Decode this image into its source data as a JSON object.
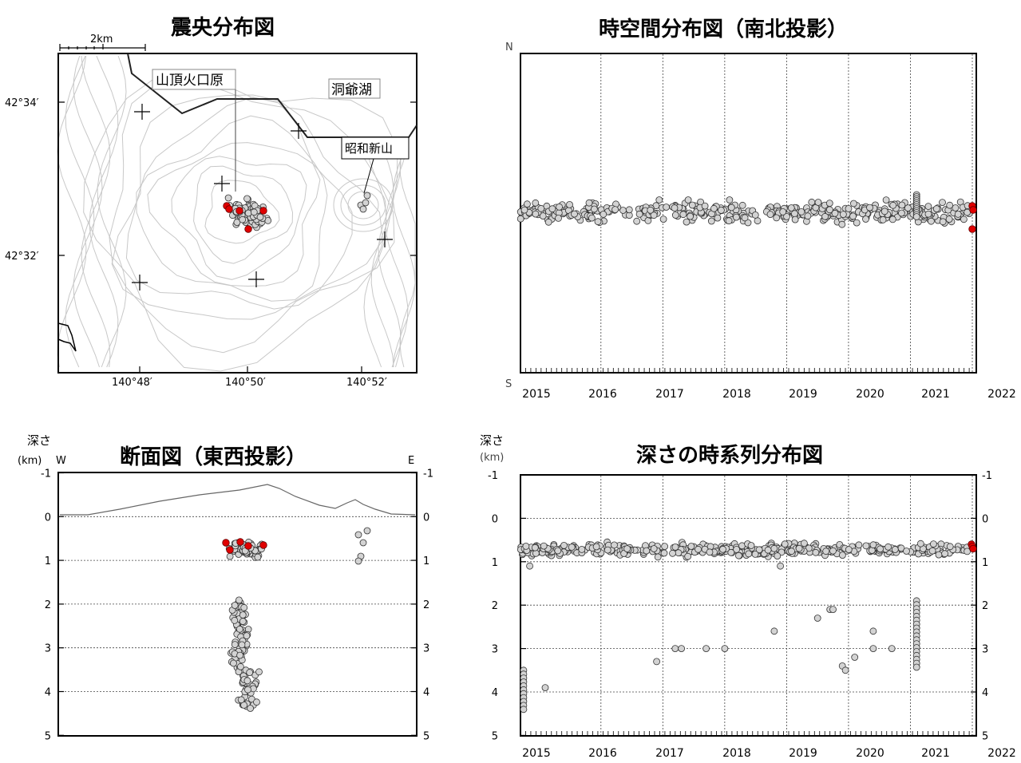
{
  "titles": {
    "epicenter": "震央分布図",
    "spacetime": "時空間分布図（南北投影）",
    "cross": "断面図（東西投影）",
    "depthtime": "深さの時系列分布図"
  },
  "labels": {
    "depth": "深さ",
    "km": "(km)",
    "west": "W",
    "east": "E",
    "north": "N",
    "south": "S",
    "scale": "2km",
    "summit": "山頂火口原",
    "lake": "洞爺湖",
    "showa": "昭和新山"
  },
  "colors": {
    "event": "#d3d3d3",
    "recent": "#e00000",
    "frame": "#000000",
    "contour": "#c8c8c8",
    "grid": "#444444"
  },
  "chart_data": [
    {
      "type": "scatter",
      "title": "震央分布図",
      "xlabel": "",
      "ylabel": "",
      "xticks": [
        "140°48′",
        "140°50′",
        "140°52′"
      ],
      "yticks": [
        "42°34′",
        "42°32′"
      ],
      "annotations": [
        "2km",
        "山頂火口原",
        "洞爺湖",
        "昭和新山"
      ],
      "series": [
        {
          "cluster": "summit",
          "lon_range": [
            140.818,
            140.836
          ],
          "lat_range": [
            42.538,
            42.547
          ],
          "n": 90
        },
        {
          "cluster": "showa-shinzan",
          "points": [
            [
              140.867,
              42.543
            ],
            [
              140.868,
              42.544
            ],
            [
              140.869,
              42.542
            ]
          ]
        }
      ],
      "recent": [
        [
          140.82,
          42.542
        ],
        [
          140.826,
          42.542
        ],
        [
          140.834,
          42.542
        ],
        [
          140.829,
          42.538
        ],
        [
          140.821,
          42.543
        ]
      ]
    },
    {
      "type": "scatter",
      "title": "時空間分布図（南北投影）",
      "xlabel": "",
      "ylabel": "",
      "xticks": [
        "2015",
        "2016",
        "2017",
        "2018",
        "2019",
        "2020",
        "2021",
        "2022"
      ],
      "ylim_labels": [
        "N",
        "S"
      ],
      "time_range": [
        2014.7,
        2022.0
      ],
      "band_ns_fraction": [
        0.33,
        0.41
      ],
      "n": 420,
      "recent": [
        [
          2021.99,
          0.36
        ],
        [
          2021.99,
          0.37
        ],
        [
          2021.99,
          0.4
        ]
      ]
    },
    {
      "type": "scatter",
      "title": "断面図（東西投影）",
      "xlabel": "",
      "ylabel": "深さ (km)",
      "yticks": [
        "-1",
        "0",
        "1",
        "2",
        "3",
        "4",
        "5"
      ],
      "ylim": [
        -1,
        5
      ],
      "clusters": [
        {
          "name": "shallow",
          "depth_range": [
            0.4,
            1.1
          ],
          "n": 70
        },
        {
          "name": "deep",
          "depth_range": [
            1.9,
            4.4
          ],
          "n": 110
        },
        {
          "name": "showa-shinzan",
          "depth_range": [
            0.4,
            0.9
          ],
          "n": 5
        }
      ],
      "recent_depths": [
        0.6,
        0.7,
        0.7,
        0.75,
        0.65
      ]
    },
    {
      "type": "scatter",
      "title": "深さの時系列分布図",
      "xlabel": "",
      "ylabel": "深さ (km)",
      "xticks": [
        "2015",
        "2016",
        "2017",
        "2018",
        "2019",
        "2020",
        "2021",
        "2022"
      ],
      "yticks": [
        "-1",
        "0",
        "1",
        "2",
        "3",
        "4",
        "5"
      ],
      "ylim": [
        -1,
        5
      ],
      "main_band_depth": [
        0.3,
        1.0
      ],
      "isolated_points": [
        [
          2014.85,
          1.1
        ],
        [
          2015.1,
          3.9
        ],
        [
          2016.9,
          3.3
        ],
        [
          2017.2,
          3.0
        ],
        [
          2017.3,
          3.0
        ],
        [
          2017.7,
          3.0
        ],
        [
          2018.0,
          3.0
        ],
        [
          2018.8,
          2.6
        ],
        [
          2018.9,
          1.1
        ],
        [
          2019.5,
          2.3
        ],
        [
          2019.7,
          2.1
        ],
        [
          2019.75,
          2.1
        ],
        [
          2019.9,
          3.4
        ],
        [
          2019.95,
          3.5
        ],
        [
          2020.1,
          3.2
        ],
        [
          2020.4,
          2.6
        ],
        [
          2020.4,
          3.0
        ],
        [
          2020.7,
          3.0
        ]
      ],
      "swarms": [
        {
          "time": 2014.75,
          "depth_range": [
            3.5,
            4.4
          ]
        },
        {
          "time": 2021.1,
          "depth_range": [
            1.9,
            3.5
          ]
        }
      ],
      "recent_depths": [
        0.6,
        0.65,
        0.7
      ]
    }
  ]
}
